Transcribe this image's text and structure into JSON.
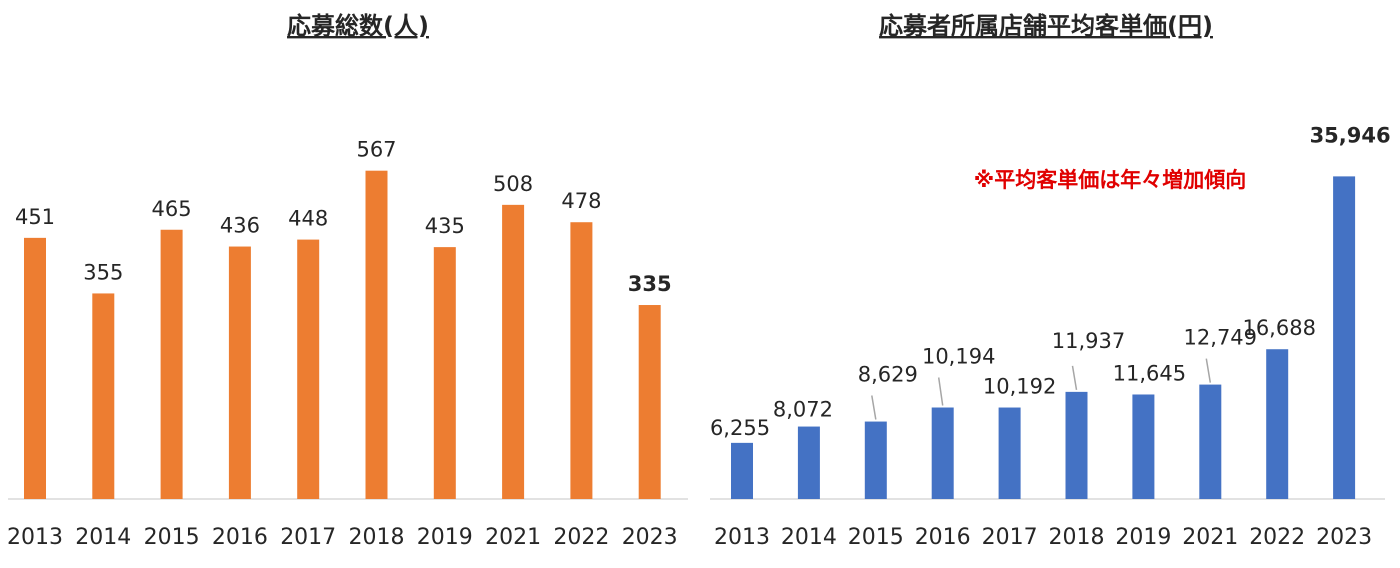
{
  "chart_data": [
    {
      "type": "bar",
      "title": "応募総数(人)",
      "categories": [
        "2013",
        "2014",
        "2015",
        "2016",
        "2017",
        "2018",
        "2019",
        "2021",
        "2022",
        "2023"
      ],
      "values": [
        451,
        355,
        465,
        436,
        448,
        567,
        435,
        508,
        478,
        335
      ],
      "value_labels": [
        "451",
        "355",
        "465",
        "436",
        "448",
        "567",
        "435",
        "508",
        "478",
        "335"
      ],
      "highlight_last_label_bold": true,
      "bar_color": "#ed7d31",
      "ylim": [
        0,
        620
      ],
      "grid": false,
      "legend": "none"
    },
    {
      "type": "bar",
      "title": "応募者所属店舗平均客単価(円)",
      "categories": [
        "2013",
        "2014",
        "2015",
        "2016",
        "2017",
        "2018",
        "2019",
        "2021",
        "2022",
        "2023"
      ],
      "values": [
        6255,
        8072,
        8629,
        10194,
        10192,
        11937,
        11645,
        12749,
        16688,
        35946
      ],
      "value_labels": [
        "6,255",
        "8,072",
        "8,629",
        "10,194",
        "10,192",
        "11,937",
        "11,645",
        "12,749",
        "16,688",
        "35,946"
      ],
      "highlight_last_label_bold": true,
      "bar_color": "#4472c4",
      "annotation": "※平均客単価は年々増加傾向",
      "annotation_color": "#e00000",
      "ylim": [
        0,
        40000
      ],
      "grid": false,
      "legend": "none"
    }
  ]
}
